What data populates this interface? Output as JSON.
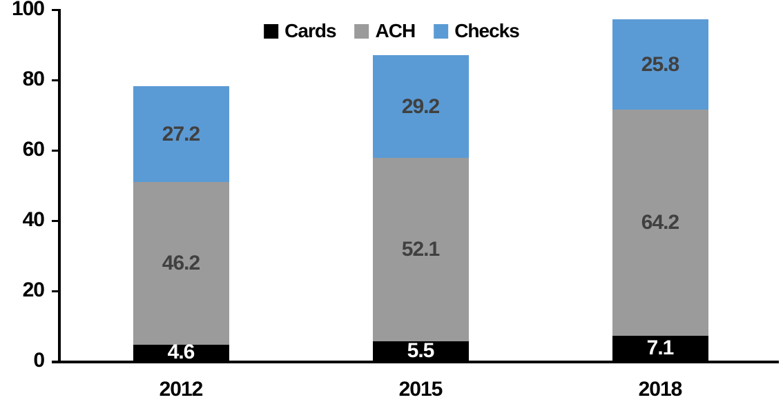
{
  "chart_data": {
    "type": "bar",
    "stacked": true,
    "title": "",
    "xlabel": "",
    "ylabel": "",
    "categories": [
      "2012",
      "2015",
      "2018"
    ],
    "series": [
      {
        "name": "Cards",
        "values": [
          4.6,
          5.5,
          7.1
        ],
        "color": "#000000",
        "label_color": "#ffffff"
      },
      {
        "name": "ACH",
        "values": [
          46.2,
          52.1,
          64.2
        ],
        "color": "#9b9b9b",
        "label_color": "#404040"
      },
      {
        "name": "Checks",
        "values": [
          27.2,
          29.2,
          25.8
        ],
        "color": "#5b9bd5",
        "label_color": "#404040"
      }
    ],
    "ylim": [
      0,
      100
    ],
    "yticks": [
      0,
      20,
      40,
      60,
      80,
      100
    ],
    "grid": false,
    "legend_position": "top-center",
    "axis_color": "#000000",
    "tick_label_color": "#000000"
  }
}
